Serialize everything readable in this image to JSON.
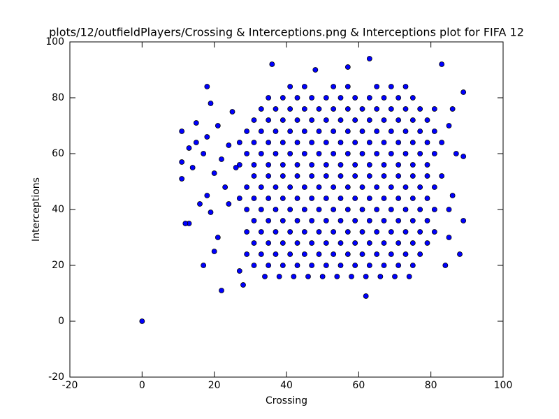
{
  "chart_data": {
    "type": "scatter",
    "title": "plots/12/outfieldPlayers/Crossing & Interceptions.png & Interceptions plot for FIFA 12",
    "xlabel": "Crossing",
    "ylabel": "Interceptions",
    "color": "#0000ff",
    "edgecolor": "#000000",
    "xlim": [
      -20,
      100
    ],
    "ylim": [
      -20,
      100
    ],
    "xticks": [
      -20,
      0,
      20,
      40,
      60,
      80,
      100
    ],
    "yticks": [
      -20,
      0,
      20,
      40,
      60,
      80,
      100
    ],
    "grid": false,
    "x": [
      34,
      38,
      42,
      46,
      50,
      54,
      58,
      62,
      66,
      70,
      74,
      31,
      35,
      39,
      43,
      47,
      51,
      55,
      59,
      63,
      67,
      71,
      75,
      29,
      33,
      37,
      41,
      45,
      49,
      53,
      57,
      61,
      65,
      69,
      73,
      77,
      31,
      35,
      39,
      43,
      47,
      51,
      55,
      59,
      63,
      67,
      71,
      75,
      79,
      29,
      33,
      37,
      41,
      45,
      49,
      53,
      57,
      61,
      65,
      69,
      73,
      77,
      81,
      31,
      35,
      39,
      43,
      47,
      51,
      55,
      59,
      63,
      67,
      71,
      75,
      79,
      29,
      33,
      37,
      41,
      45,
      49,
      53,
      57,
      61,
      65,
      69,
      73,
      77,
      81,
      85,
      27,
      31,
      35,
      39,
      43,
      47,
      51,
      55,
      59,
      63,
      67,
      71,
      75,
      79,
      29,
      33,
      37,
      41,
      45,
      49,
      53,
      57,
      61,
      65,
      69,
      73,
      77,
      81,
      31,
      35,
      39,
      43,
      47,
      51,
      55,
      59,
      63,
      67,
      71,
      75,
      79,
      83,
      27,
      31,
      35,
      39,
      43,
      47,
      51,
      55,
      59,
      63,
      67,
      71,
      75,
      79,
      29,
      33,
      37,
      41,
      45,
      49,
      53,
      57,
      61,
      65,
      69,
      73,
      77,
      81,
      27,
      31,
      35,
      39,
      43,
      47,
      51,
      55,
      59,
      63,
      67,
      71,
      75,
      79,
      83,
      29,
      33,
      37,
      41,
      45,
      49,
      53,
      57,
      61,
      65,
      69,
      73,
      77,
      81,
      31,
      35,
      39,
      43,
      47,
      51,
      55,
      59,
      63,
      67,
      71,
      75,
      79,
      33,
      37,
      41,
      45,
      49,
      53,
      57,
      61,
      65,
      69,
      73,
      77,
      81,
      35,
      39,
      43,
      47,
      51,
      55,
      59,
      63,
      67,
      71,
      75,
      41,
      45,
      53,
      57,
      65,
      69,
      73,
      11,
      11,
      13,
      14,
      15,
      16,
      17,
      18,
      18,
      19,
      20,
      21,
      22,
      23,
      24,
      25,
      19,
      21,
      24,
      26,
      13,
      15,
      18,
      20,
      27,
      28,
      85,
      86,
      87,
      88,
      89,
      89,
      89,
      84,
      86,
      85,
      0,
      63,
      36,
      83,
      57,
      48,
      22,
      62,
      17,
      12,
      11
    ],
    "y": [
      16,
      16,
      16,
      16,
      16,
      16,
      16,
      16,
      16,
      16,
      16,
      20,
      20,
      20,
      20,
      20,
      20,
      20,
      20,
      20,
      20,
      20,
      20,
      24,
      24,
      24,
      24,
      24,
      24,
      24,
      24,
      24,
      24,
      24,
      24,
      24,
      28,
      28,
      28,
      28,
      28,
      28,
      28,
      28,
      28,
      28,
      28,
      28,
      28,
      32,
      32,
      32,
      32,
      32,
      32,
      32,
      32,
      32,
      32,
      32,
      32,
      32,
      32,
      36,
      36,
      36,
      36,
      36,
      36,
      36,
      36,
      36,
      36,
      36,
      36,
      36,
      40,
      40,
      40,
      40,
      40,
      40,
      40,
      40,
      40,
      40,
      40,
      40,
      40,
      40,
      40,
      44,
      44,
      44,
      44,
      44,
      44,
      44,
      44,
      44,
      44,
      44,
      44,
      44,
      44,
      48,
      48,
      48,
      48,
      48,
      48,
      48,
      48,
      48,
      48,
      48,
      48,
      48,
      48,
      52,
      52,
      52,
      52,
      52,
      52,
      52,
      52,
      52,
      52,
      52,
      52,
      52,
      52,
      56,
      56,
      56,
      56,
      56,
      56,
      56,
      56,
      56,
      56,
      56,
      56,
      56,
      56,
      60,
      60,
      60,
      60,
      60,
      60,
      60,
      60,
      60,
      60,
      60,
      60,
      60,
      60,
      64,
      64,
      64,
      64,
      64,
      64,
      64,
      64,
      64,
      64,
      64,
      64,
      64,
      64,
      64,
      68,
      68,
      68,
      68,
      68,
      68,
      68,
      68,
      68,
      68,
      68,
      68,
      68,
      68,
      72,
      72,
      72,
      72,
      72,
      72,
      72,
      72,
      72,
      72,
      72,
      72,
      72,
      76,
      76,
      76,
      76,
      76,
      76,
      76,
      76,
      76,
      76,
      76,
      76,
      76,
      80,
      80,
      80,
      80,
      80,
      80,
      80,
      80,
      80,
      80,
      80,
      84,
      84,
      84,
      84,
      84,
      84,
      84,
      57,
      51,
      62,
      55,
      64,
      42,
      60,
      45,
      66,
      78,
      53,
      70,
      58,
      48,
      63,
      75,
      39,
      30,
      42,
      55,
      35,
      71,
      84,
      25,
      18,
      13,
      70,
      45,
      60,
      24,
      82,
      59,
      36,
      20,
      76,
      30,
      0,
      94,
      92,
      92,
      91,
      90,
      11,
      9,
      20,
      35,
      68
    ]
  }
}
